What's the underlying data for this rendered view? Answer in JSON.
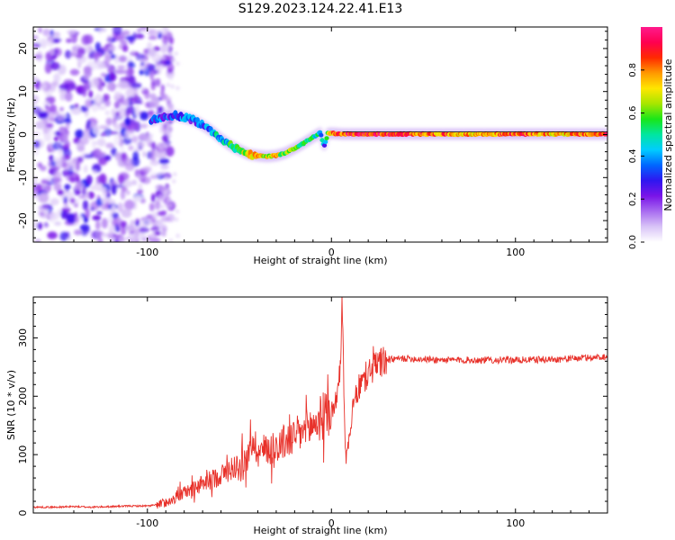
{
  "figure": {
    "title": "S129.2023.124.22.41.E13"
  },
  "colors": {
    "snr_line": "#e8312a",
    "frame": "#000000",
    "colormap": [
      "#ffffff",
      "#d9c4f7",
      "#a86cf0",
      "#7a14e8",
      "#2f16f0",
      "#0066ff",
      "#00ccff",
      "#00e6a0",
      "#19e619",
      "#a6e600",
      "#ffe600",
      "#ff9900",
      "#ff2a00",
      "#ff0050",
      "#ff1a8c"
    ]
  },
  "chart_data": [
    {
      "id": "spectrogram",
      "type": "heatmap",
      "xlabel": "Height of straight line (km)",
      "ylabel": "Frequency (Hz)",
      "xlim": [
        -162,
        150
      ],
      "ylim": [
        -25,
        25
      ],
      "xticks": [
        -100,
        0,
        100
      ],
      "yticks": [
        -20,
        -10,
        0,
        10,
        20
      ],
      "colorbar": {
        "label": "Normalized spectral amplitude",
        "range": [
          0.0,
          1.0
        ],
        "ticks": [
          "0.0",
          "0.2",
          "0.4",
          "0.6",
          "0.8"
        ]
      },
      "ridge": {
        "x": [
          -98,
          -92,
          -85,
          -80,
          -75,
          -70,
          -65,
          -60,
          -55,
          -50,
          -45,
          -40,
          -35,
          -30,
          -25,
          -20,
          -15,
          -10,
          -6,
          -4,
          -2,
          0,
          3,
          6,
          10,
          20,
          40,
          60,
          80,
          100,
          120,
          140,
          150
        ],
        "freq": [
          3.2,
          4.0,
          4.5,
          4.0,
          3.4,
          2.2,
          0.8,
          -1.0,
          -2.5,
          -3.6,
          -4.6,
          -4.9,
          -5.1,
          -4.9,
          -4.3,
          -3.2,
          -2.0,
          -0.6,
          0.4,
          -3.0,
          0.2,
          0.3,
          0.2,
          0.1,
          0.1,
          0.1,
          0.1,
          0.1,
          0.1,
          0.1,
          0.1,
          0.1,
          0.1
        ],
        "amplitude": [
          0.35,
          0.3,
          0.25,
          0.35,
          0.3,
          0.35,
          0.4,
          0.45,
          0.5,
          0.55,
          0.7,
          0.8,
          0.65,
          0.7,
          0.6,
          0.65,
          0.55,
          0.5,
          0.45,
          0.3,
          0.6,
          0.75,
          0.8,
          0.85,
          0.9,
          0.9,
          0.85,
          0.8,
          0.75,
          0.85,
          0.75,
          0.8,
          0.85
        ]
      },
      "noise_region": {
        "x": [
          -162,
          -95
        ],
        "amplitude": [
          0.0,
          0.3
        ]
      }
    },
    {
      "id": "snr",
      "type": "line",
      "xlabel": "Height of straight line (km)",
      "ylabel": "SNR (10 * v/v)",
      "xlim": [
        -162,
        150
      ],
      "ylim": [
        0,
        370
      ],
      "xticks": [
        -100,
        0,
        100
      ],
      "yticks": [
        0,
        100,
        200,
        300
      ],
      "series": [
        {
          "x": [
            -162,
            -150,
            -140,
            -130,
            -120,
            -110,
            -100,
            -95,
            -90,
            -85,
            -80,
            -70,
            -60,
            -50,
            -45,
            -43,
            -40,
            -30,
            -20,
            -10,
            -5,
            0,
            3,
            5,
            6,
            7,
            8,
            10,
            12,
            15,
            20,
            25,
            30,
            40,
            60,
            80,
            100,
            120,
            140,
            150
          ],
          "y": [
            10,
            10,
            11,
            10,
            11,
            12,
            12,
            14,
            18,
            25,
            35,
            50,
            65,
            85,
            95,
            130,
            105,
            115,
            130,
            150,
            165,
            175,
            195,
            260,
            370,
            160,
            90,
            140,
            185,
            215,
            240,
            255,
            262,
            265,
            262,
            262,
            262,
            263,
            266,
            268
          ]
        }
      ]
    }
  ]
}
